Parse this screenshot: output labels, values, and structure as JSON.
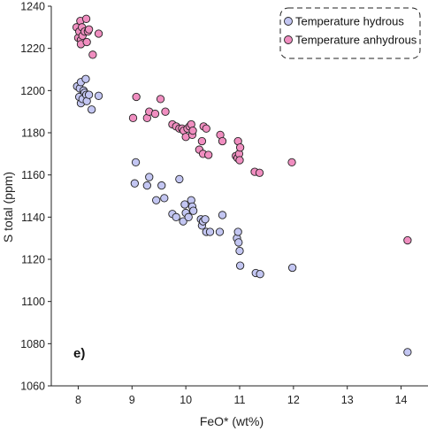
{
  "chart_data": {
    "type": "scatter",
    "title": "",
    "xlabel": "FeO* (wt%)",
    "ylabel": "S total (ppm)",
    "panel_label": "e)",
    "xlim": [
      7.5,
      14.5
    ],
    "ylim": [
      1060,
      1240
    ],
    "xticks": [
      8,
      9,
      10,
      11,
      12,
      13,
      14
    ],
    "yticks": [
      1060,
      1080,
      1100,
      1120,
      1140,
      1160,
      1180,
      1200,
      1220,
      1240
    ],
    "grid": false,
    "legend_position": "top-right",
    "series": [
      {
        "name": "Temperature hydrous",
        "color": "#c3c6f2",
        "points": [
          [
            7.98,
            1202
          ],
          [
            8.03,
            1201
          ],
          [
            8.05,
            1204
          ],
          [
            8.02,
            1197
          ],
          [
            8.05,
            1194
          ],
          [
            8.08,
            1196
          ],
          [
            8.1,
            1200
          ],
          [
            8.12,
            1199
          ],
          [
            8.14,
            1205.5
          ],
          [
            8.15,
            1198
          ],
          [
            8.16,
            1195
          ],
          [
            8.2,
            1198
          ],
          [
            8.25,
            1191
          ],
          [
            8.38,
            1197.5
          ],
          [
            9.05,
            1156
          ],
          [
            9.07,
            1166
          ],
          [
            9.28,
            1155
          ],
          [
            9.32,
            1159
          ],
          [
            9.45,
            1148
          ],
          [
            9.55,
            1155
          ],
          [
            9.6,
            1149
          ],
          [
            9.75,
            1141.5
          ],
          [
            9.82,
            1140
          ],
          [
            9.88,
            1158
          ],
          [
            9.95,
            1138
          ],
          [
            9.98,
            1146
          ],
          [
            10.0,
            1142
          ],
          [
            10.05,
            1140
          ],
          [
            10.1,
            1148
          ],
          [
            10.12,
            1145
          ],
          [
            10.14,
            1143
          ],
          [
            10.28,
            1139
          ],
          [
            10.3,
            1136
          ],
          [
            10.32,
            1138
          ],
          [
            10.36,
            1139
          ],
          [
            10.38,
            1133
          ],
          [
            10.45,
            1133
          ],
          [
            10.63,
            1133
          ],
          [
            10.68,
            1141
          ],
          [
            10.95,
            1130
          ],
          [
            10.97,
            1133
          ],
          [
            10.98,
            1128
          ],
          [
            11.0,
            1124
          ],
          [
            11.01,
            1117
          ],
          [
            11.3,
            1113.5
          ],
          [
            11.38,
            1113
          ],
          [
            11.98,
            1116
          ],
          [
            14.12,
            1076
          ]
        ]
      },
      {
        "name": "Temperature anhydrous",
        "color": "#f08ec0",
        "points": [
          [
            7.97,
            1230
          ],
          [
            8.0,
            1225
          ],
          [
            8.02,
            1228
          ],
          [
            8.04,
            1233
          ],
          [
            8.05,
            1224
          ],
          [
            8.05,
            1222
          ],
          [
            8.07,
            1230
          ],
          [
            8.08,
            1226
          ],
          [
            8.12,
            1228
          ],
          [
            8.15,
            1234
          ],
          [
            8.16,
            1223
          ],
          [
            8.18,
            1228
          ],
          [
            8.2,
            1229
          ],
          [
            8.27,
            1217
          ],
          [
            8.38,
            1227
          ],
          [
            9.02,
            1187
          ],
          [
            9.08,
            1197
          ],
          [
            9.28,
            1187
          ],
          [
            9.32,
            1190
          ],
          [
            9.43,
            1189
          ],
          [
            9.53,
            1196
          ],
          [
            9.62,
            1190
          ],
          [
            9.75,
            1184
          ],
          [
            9.82,
            1183
          ],
          [
            9.88,
            1182
          ],
          [
            9.93,
            1182
          ],
          [
            9.96,
            1181
          ],
          [
            10.0,
            1178
          ],
          [
            10.03,
            1182
          ],
          [
            10.07,
            1183
          ],
          [
            10.1,
            1184
          ],
          [
            10.12,
            1179
          ],
          [
            10.13,
            1181
          ],
          [
            10.25,
            1172
          ],
          [
            10.3,
            1176
          ],
          [
            10.32,
            1170
          ],
          [
            10.33,
            1183
          ],
          [
            10.38,
            1182
          ],
          [
            10.42,
            1169.5
          ],
          [
            10.64,
            1179
          ],
          [
            10.68,
            1176
          ],
          [
            10.93,
            1169
          ],
          [
            10.96,
            1168
          ],
          [
            10.97,
            1176
          ],
          [
            10.99,
            1170
          ],
          [
            11.0,
            1167
          ],
          [
            11.01,
            1173
          ],
          [
            11.28,
            1161.5
          ],
          [
            11.37,
            1161
          ],
          [
            11.97,
            1166
          ],
          [
            14.12,
            1129
          ]
        ]
      }
    ]
  }
}
